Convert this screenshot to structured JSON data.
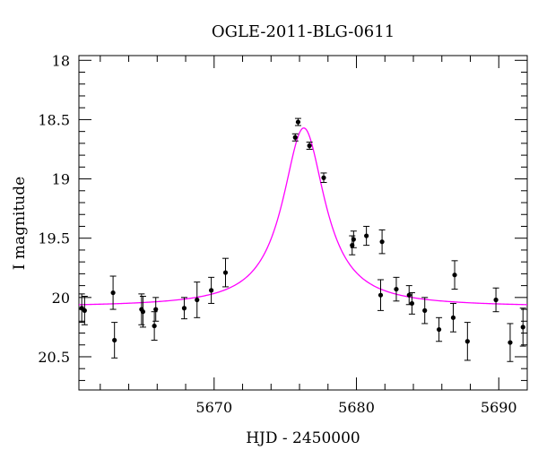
{
  "chart_data": {
    "type": "scatter",
    "title": "OGLE-2011-BLG-0611",
    "xlabel": "HJD - 2450000",
    "ylabel": "I magnitude",
    "xlim": [
      5660.5,
      5692
    ],
    "ylim": [
      20.78,
      17.96
    ],
    "y_inverted": true,
    "x_ticks": [
      5670,
      5680,
      5690
    ],
    "y_ticks": [
      18,
      18.5,
      19,
      19.5,
      20,
      20.5
    ],
    "x_tick_labels": [
      "5670",
      "5680",
      "5690"
    ],
    "y_tick_labels": [
      "18",
      "18.5",
      "19",
      "19.5",
      "20",
      "20.5"
    ],
    "x_minor_step": 2,
    "y_minor_step": 0.1,
    "grid": false,
    "series": [
      {
        "kind": "points",
        "color": "#000000",
        "points": [
          {
            "x": 5660.7,
            "y": 20.09,
            "err": 0.12
          },
          {
            "x": 5660.9,
            "y": 20.11,
            "err": 0.12
          },
          {
            "x": 5662.9,
            "y": 19.96,
            "err": 0.14
          },
          {
            "x": 5663.0,
            "y": 20.36,
            "err": 0.15
          },
          {
            "x": 5664.9,
            "y": 20.1,
            "err": 0.13
          },
          {
            "x": 5665.0,
            "y": 20.12,
            "err": 0.13
          },
          {
            "x": 5665.8,
            "y": 20.24,
            "err": 0.12
          },
          {
            "x": 5665.9,
            "y": 20.1,
            "err": 0.1
          },
          {
            "x": 5667.9,
            "y": 20.09,
            "err": 0.09
          },
          {
            "x": 5668.8,
            "y": 20.02,
            "err": 0.15
          },
          {
            "x": 5669.8,
            "y": 19.94,
            "err": 0.11
          },
          {
            "x": 5670.8,
            "y": 19.79,
            "err": 0.12
          },
          {
            "x": 5675.7,
            "y": 18.65,
            "err": 0.03
          },
          {
            "x": 5675.9,
            "y": 18.52,
            "err": 0.03
          },
          {
            "x": 5676.7,
            "y": 18.72,
            "err": 0.03
          },
          {
            "x": 5677.7,
            "y": 18.99,
            "err": 0.04
          },
          {
            "x": 5679.7,
            "y": 19.56,
            "err": 0.08
          },
          {
            "x": 5679.8,
            "y": 19.51,
            "err": 0.07
          },
          {
            "x": 5680.7,
            "y": 19.48,
            "err": 0.08
          },
          {
            "x": 5681.7,
            "y": 19.98,
            "err": 0.13
          },
          {
            "x": 5681.8,
            "y": 19.53,
            "err": 0.1
          },
          {
            "x": 5682.8,
            "y": 19.93,
            "err": 0.1
          },
          {
            "x": 5683.7,
            "y": 19.98,
            "err": 0.08
          },
          {
            "x": 5683.9,
            "y": 20.05,
            "err": 0.09
          },
          {
            "x": 5684.8,
            "y": 20.11,
            "err": 0.11
          },
          {
            "x": 5685.8,
            "y": 20.27,
            "err": 0.1
          },
          {
            "x": 5686.8,
            "y": 20.17,
            "err": 0.12
          },
          {
            "x": 5686.9,
            "y": 19.81,
            "err": 0.12
          },
          {
            "x": 5687.8,
            "y": 20.37,
            "err": 0.16
          },
          {
            "x": 5689.8,
            "y": 20.02,
            "err": 0.1
          },
          {
            "x": 5690.8,
            "y": 20.38,
            "err": 0.16
          },
          {
            "x": 5691.7,
            "y": 20.25,
            "err": 0.16
          }
        ]
      },
      {
        "kind": "model_curve",
        "color": "#ff00ff",
        "t0": 5676.3,
        "peak_mag": 18.57,
        "base_mag": 20.08,
        "half_width": 1.8
      }
    ]
  }
}
